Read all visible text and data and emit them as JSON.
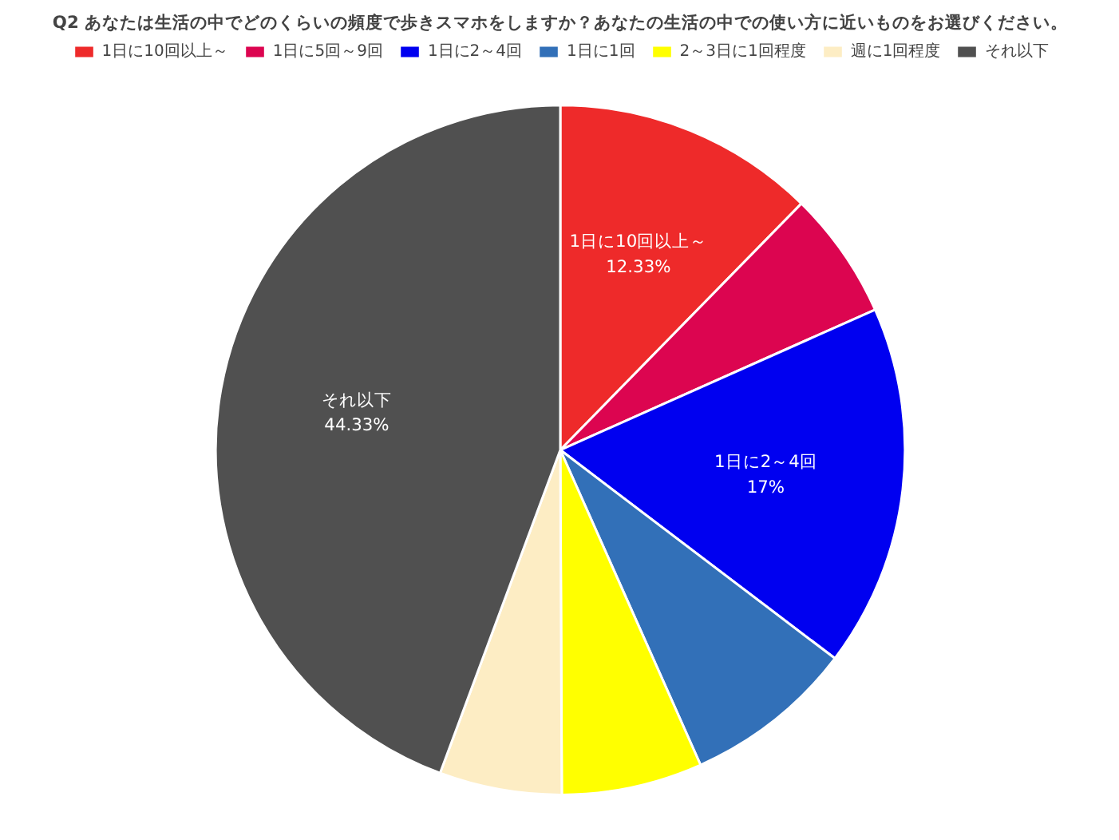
{
  "chart_data": {
    "type": "pie",
    "title": "Q2 あなたは生活の中でどのくらいの頻度で歩きスマホをしますか？あなたの生活の中での使い方に近いものをお選びください。",
    "categories": [
      "1日に10回以上～",
      "1日に5回～9回",
      "1日に2～4回",
      "1日に1回",
      "2～3日に1回程度",
      "週に1回程度",
      "それ以下"
    ],
    "values": [
      12.33,
      6.0,
      17,
      8.0,
      6.6,
      5.74,
      44.33
    ],
    "colors": [
      "#ee2a2a",
      "#dc0550",
      "#0000f0",
      "#3270b8",
      "#ffff00",
      "#fdedc4",
      "#505050"
    ],
    "value_labels": [
      "12.33%",
      null,
      "17%",
      null,
      null,
      null,
      "44.33%"
    ],
    "legend": "top"
  }
}
